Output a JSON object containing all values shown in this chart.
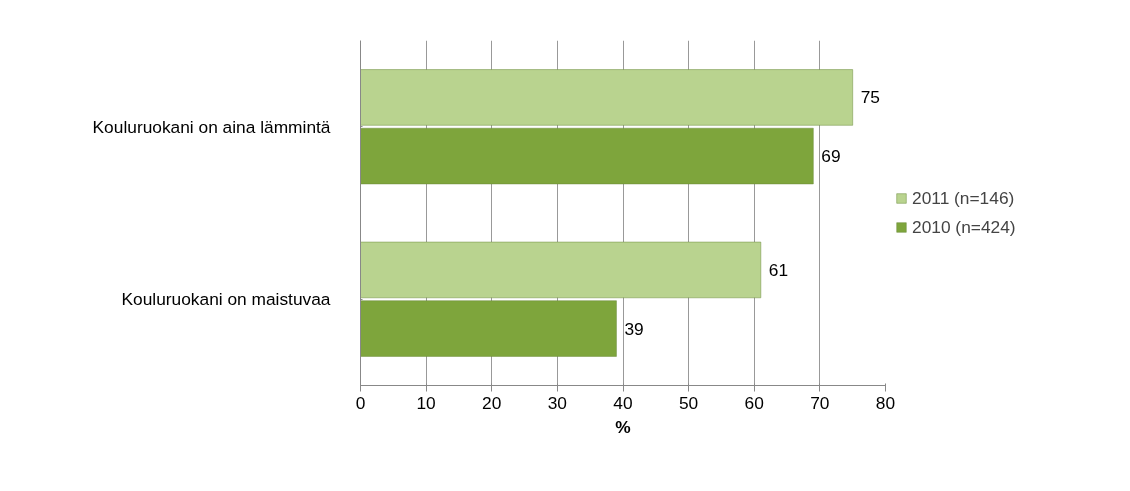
{
  "chart_data": {
    "type": "bar",
    "orientation": "horizontal",
    "categories": [
      "Kouluruokani on aina lämmintä",
      "Kouluruokani on maistuvaa"
    ],
    "series": [
      {
        "name": "2011 (n=146)",
        "color": "#b9d38f",
        "values": [
          75,
          61
        ]
      },
      {
        "name": "2010 (n=424)",
        "color": "#7ea53c",
        "values": [
          69,
          39
        ]
      }
    ],
    "xlabel": "%",
    "xlim": [
      0,
      80
    ],
    "xticks": [
      0,
      10,
      20,
      30,
      40,
      50,
      60,
      70,
      80
    ],
    "grid": "x",
    "legend": "right",
    "data_labels": true
  }
}
